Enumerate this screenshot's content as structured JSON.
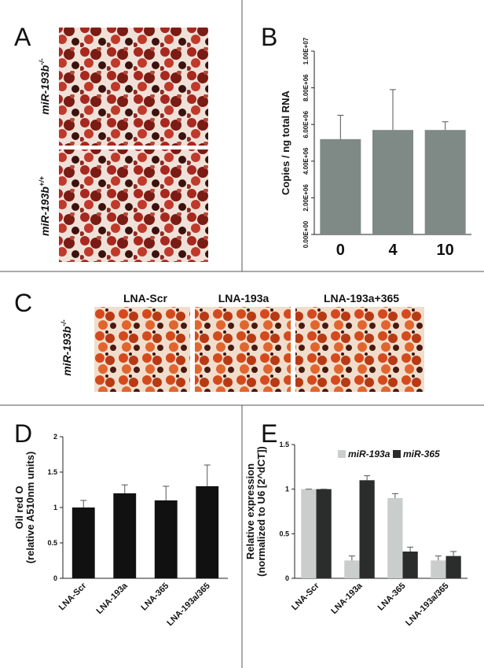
{
  "panels": [
    {
      "label": "A",
      "image_labels": [
        {
          "text": "miR-193b",
          "sup": "-/-"
        },
        {
          "text": "miR-193b",
          "sup": "+/+"
        }
      ]
    },
    {
      "label": "C",
      "image_labels": [
        {
          "text": "miR-193b",
          "sup": "-/-"
        }
      ],
      "headers": [
        "LNA-Scr",
        "LNA-193a",
        "LNA-193a+365"
      ]
    }
  ],
  "chart_data": [
    {
      "type": "bar",
      "label": "B",
      "y_label": [
        "Copies / ng total RNA"
      ],
      "categories": [
        "0",
        "4",
        "10"
      ],
      "series": [
        {
          "color": "#7f8986",
          "values": [
            5200000,
            5700000,
            5700000
          ],
          "errors": [
            1300000,
            2200000,
            450000
          ]
        }
      ],
      "ylim": [
        0,
        10000000
      ],
      "yticks": [
        {
          "value": 0,
          "label": "0.00E+00"
        },
        {
          "value": 2000000,
          "label": "2.00E+06"
        },
        {
          "value": 4000000,
          "label": "4.00E+06"
        },
        {
          "value": 6000000,
          "label": "6.00E+06"
        },
        {
          "value": 8000000,
          "label": "8.00E+06"
        },
        {
          "value": 10000000,
          "label": "1.00E+07"
        }
      ]
    },
    {
      "type": "bar",
      "label": "D",
      "y_label": [
        "Oil red O",
        "(relative A510nm units)"
      ],
      "categories": [
        "LNA-Scr",
        "LNA-193a",
        "LNA-365",
        "LNA-193a/365"
      ],
      "series": [
        {
          "color": "#111111",
          "values": [
            1.0,
            1.2,
            1.1,
            1.3
          ],
          "errors": [
            0.1,
            0.12,
            0.2,
            0.3
          ]
        }
      ],
      "ylim": [
        0,
        2
      ],
      "yticks": [
        0,
        0.5,
        1,
        1.5,
        2
      ]
    },
    {
      "type": "bar",
      "label": "E",
      "y_label": [
        "Relative expression",
        "(normalized to U6 [2^dCT])"
      ],
      "categories": [
        "LNA-Scr",
        "LNA-193a",
        "LNA-365",
        "LNA-193a/365"
      ],
      "series": [
        {
          "name": "miR-193a",
          "color": "#c9cdcb",
          "values": [
            1,
            0.2,
            0.9,
            0.2
          ],
          "errors": [
            0,
            0.05,
            0.05,
            0.05
          ]
        },
        {
          "name": "miR-365",
          "color": "#2a2d2c",
          "values": [
            1,
            1.1,
            0.3,
            0.25
          ],
          "errors": [
            0,
            0.05,
            0.05,
            0.05
          ]
        }
      ],
      "ylim": [
        0,
        1.5
      ],
      "yticks": [
        0,
        0.5,
        1,
        1.5
      ]
    }
  ]
}
